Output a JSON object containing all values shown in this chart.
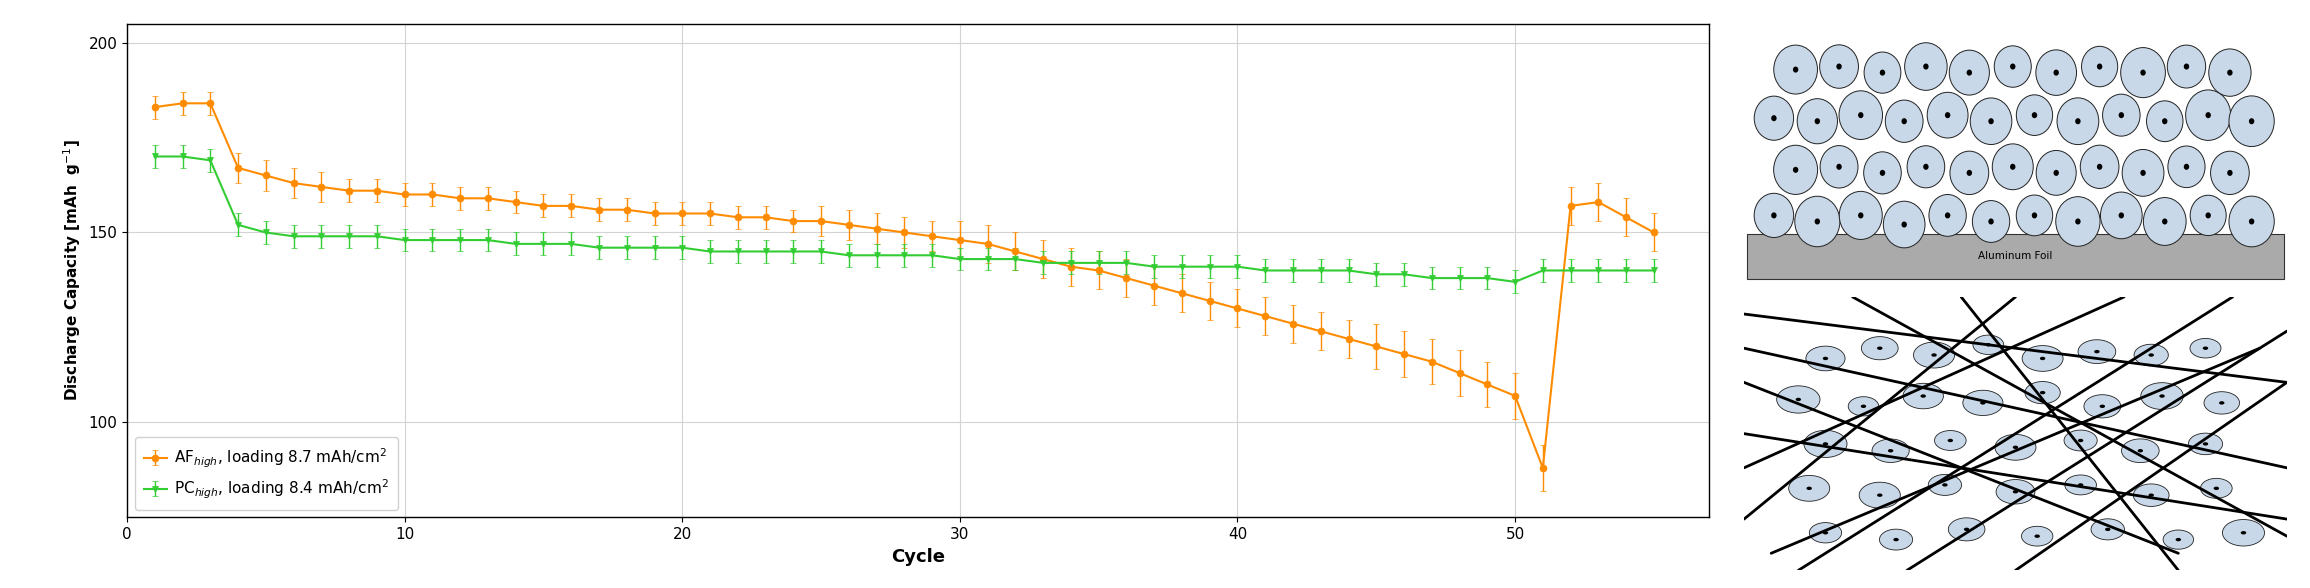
{
  "af_cycles": [
    1,
    2,
    3,
    4,
    5,
    6,
    7,
    8,
    9,
    10,
    11,
    12,
    13,
    14,
    15,
    16,
    17,
    18,
    19,
    20,
    21,
    22,
    23,
    24,
    25,
    26,
    27,
    28,
    29,
    30,
    31,
    32,
    33,
    34,
    35,
    36,
    37,
    38,
    39,
    40,
    41,
    42,
    43,
    44,
    45,
    46,
    47,
    48,
    49,
    50,
    51,
    52,
    53,
    54,
    55
  ],
  "af_values": [
    183,
    184,
    184,
    167,
    165,
    163,
    162,
    161,
    161,
    160,
    160,
    159,
    159,
    158,
    157,
    157,
    156,
    156,
    155,
    155,
    155,
    154,
    154,
    153,
    153,
    152,
    151,
    150,
    149,
    148,
    147,
    145,
    143,
    141,
    140,
    138,
    136,
    134,
    132,
    130,
    128,
    126,
    124,
    122,
    120,
    118,
    116,
    113,
    110,
    107,
    88,
    157,
    158,
    154,
    150
  ],
  "af_errors": [
    3,
    3,
    3,
    4,
    4,
    4,
    4,
    3,
    3,
    3,
    3,
    3,
    3,
    3,
    3,
    3,
    3,
    3,
    3,
    3,
    3,
    3,
    3,
    3,
    4,
    4,
    4,
    4,
    4,
    5,
    5,
    5,
    5,
    5,
    5,
    5,
    5,
    5,
    5,
    5,
    5,
    5,
    5,
    5,
    6,
    6,
    6,
    6,
    6,
    6,
    6,
    5,
    5,
    5,
    5
  ],
  "pc_cycles": [
    1,
    2,
    3,
    4,
    5,
    6,
    7,
    8,
    9,
    10,
    11,
    12,
    13,
    14,
    15,
    16,
    17,
    18,
    19,
    20,
    21,
    22,
    23,
    24,
    25,
    26,
    27,
    28,
    29,
    30,
    31,
    32,
    33,
    34,
    35,
    36,
    37,
    38,
    39,
    40,
    41,
    42,
    43,
    44,
    45,
    46,
    47,
    48,
    49,
    50,
    51,
    52,
    53,
    54,
    55
  ],
  "pc_values": [
    170,
    170,
    169,
    152,
    150,
    149,
    149,
    149,
    149,
    148,
    148,
    148,
    148,
    147,
    147,
    147,
    146,
    146,
    146,
    146,
    145,
    145,
    145,
    145,
    145,
    144,
    144,
    144,
    144,
    143,
    143,
    143,
    142,
    142,
    142,
    142,
    141,
    141,
    141,
    141,
    140,
    140,
    140,
    140,
    139,
    139,
    138,
    138,
    138,
    137,
    140,
    140,
    140,
    140,
    140
  ],
  "pc_errors": [
    3,
    3,
    3,
    3,
    3,
    3,
    3,
    3,
    3,
    3,
    3,
    3,
    3,
    3,
    3,
    3,
    3,
    3,
    3,
    3,
    3,
    3,
    3,
    3,
    3,
    3,
    3,
    3,
    3,
    3,
    3,
    3,
    3,
    3,
    3,
    3,
    3,
    3,
    3,
    3,
    3,
    3,
    3,
    3,
    3,
    3,
    3,
    3,
    3,
    3,
    3,
    3,
    3,
    3,
    3
  ],
  "af_color": "#FF8C00",
  "pc_color": "#32CD32",
  "xlabel": "Cycle",
  "ylim": [
    75,
    205
  ],
  "xlim": [
    0,
    57
  ],
  "yticks": [
    100,
    150,
    200
  ],
  "xticks": [
    0,
    10,
    20,
    30,
    40,
    50
  ],
  "legend_af": "AF$_{high}$, loading 8.7 mAh/cm$^2$",
  "legend_pc": "PC$_{high}$, loading 8.4 mAh/cm$^2$",
  "orange_box_color": "#FF8C00",
  "green_box_color": "#32CD32",
  "fig_width": 23.1,
  "fig_height": 5.88,
  "dpi": 100
}
